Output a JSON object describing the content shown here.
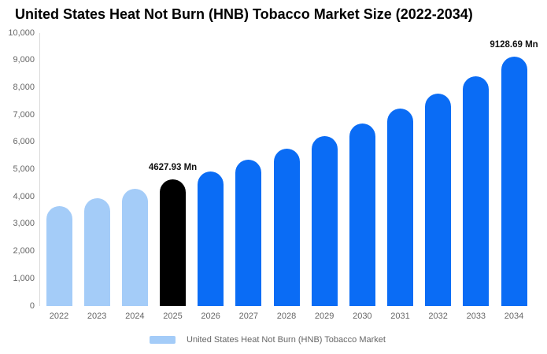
{
  "chart_data": {
    "type": "bar",
    "title": "United States Heat Not Burn (HNB) Tobacco Market Size (2022-2034)",
    "categories": [
      "2022",
      "2023",
      "2024",
      "2025",
      "2026",
      "2027",
      "2028",
      "2029",
      "2030",
      "2031",
      "2032",
      "2033",
      "2034"
    ],
    "values": [
      3650,
      3950,
      4280,
      4627.93,
      4930,
      5350,
      5760,
      6220,
      6690,
      7220,
      7780,
      8410,
      9128.69
    ],
    "bar_colors": [
      "#a4ccf8",
      "#a4ccf8",
      "#a4ccf8",
      "#000000",
      "#0a6cf5",
      "#0a6cf5",
      "#0a6cf5",
      "#0a6cf5",
      "#0a6cf5",
      "#0a6cf5",
      "#0a6cf5",
      "#0a6cf5",
      "#0a6cf5"
    ],
    "annotations": [
      {
        "category": "2025",
        "text": "4627.93 Mn"
      },
      {
        "category": "2034",
        "text": "9128.69 Mn"
      }
    ],
    "unit": "Mn",
    "xlabel": "",
    "ylabel": "",
    "ylim": [
      0,
      10000
    ],
    "ytick_step": 1000,
    "grid": false,
    "legend": {
      "label": "United States Heat Not Burn (HNB) Tobacco Market",
      "position": "bottom",
      "swatch_color": "#a4ccf8"
    }
  },
  "colors": {
    "historical_bar": "#a4ccf8",
    "base_year_bar": "#000000",
    "forecast_bar": "#0a6cf5",
    "axis_line": "#d9d9d9",
    "tick_text": "#666666",
    "title_text": "#000000",
    "background": "#ffffff"
  }
}
